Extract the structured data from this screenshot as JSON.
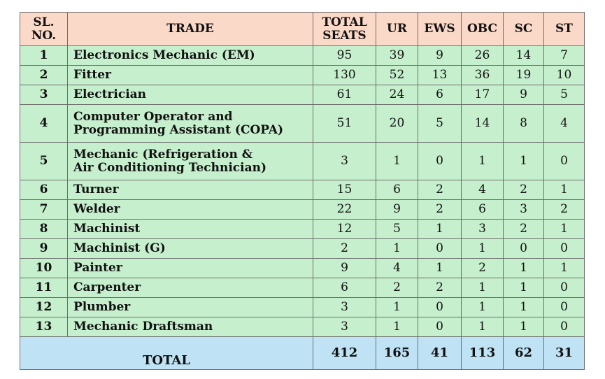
{
  "headers": [
    "SL. NO.",
    "TRADE",
    "TOTAL SEATS",
    "UR",
    "EWS",
    "OBC",
    "SC",
    "ST"
  ],
  "rows": [
    {
      "sl": "1",
      "trade": [
        "Electronics Mechanic (EM)"
      ],
      "total": "95",
      "ur": "39",
      "ews": "9",
      "obc": "26",
      "sc": "14",
      "st": "7"
    },
    {
      "sl": "2",
      "trade": [
        "Fitter"
      ],
      "total": "130",
      "ur": "52",
      "ews": "13",
      "obc": "36",
      "sc": "19",
      "st": "10"
    },
    {
      "sl": "3",
      "trade": [
        "Electrician"
      ],
      "total": "61",
      "ur": "24",
      "ews": "6",
      "obc": "17",
      "sc": "9",
      "st": "5"
    },
    {
      "sl": "4",
      "trade": [
        "Computer Operator and",
        "Programming Assistant (COPA)"
      ],
      "total": "51",
      "ur": "20",
      "ews": "5",
      "obc": "14",
      "sc": "8",
      "st": "4"
    },
    {
      "sl": "5",
      "trade": [
        "Mechanic (Refrigeration &",
        "Air Conditioning Technician)"
      ],
      "total": "3",
      "ur": "1",
      "ews": "0",
      "obc": "1",
      "sc": "1",
      "st": "0"
    },
    {
      "sl": "6",
      "trade": [
        "Turner"
      ],
      "total": "15",
      "ur": "6",
      "ews": "2",
      "obc": "4",
      "sc": "2",
      "st": "1"
    },
    {
      "sl": "7",
      "trade": [
        "Welder"
      ],
      "total": "22",
      "ur": "9",
      "ews": "2",
      "obc": "6",
      "sc": "3",
      "st": "2"
    },
    {
      "sl": "8",
      "trade": [
        "Machinist"
      ],
      "total": "12",
      "ur": "5",
      "ews": "1",
      "obc": "3",
      "sc": "2",
      "st": "1"
    },
    {
      "sl": "9",
      "trade": [
        "Machinist (G)"
      ],
      "total": "2",
      "ur": "1",
      "ews": "0",
      "obc": "1",
      "sc": "0",
      "st": "0"
    },
    {
      "sl": "10",
      "trade": [
        "Painter"
      ],
      "total": "9",
      "ur": "4",
      "ews": "1",
      "obc": "2",
      "sc": "1",
      "st": "1"
    },
    {
      "sl": "11",
      "trade": [
        "Carpenter"
      ],
      "total": "6",
      "ur": "2",
      "ews": "2",
      "obc": "1",
      "sc": "1",
      "st": "0"
    },
    {
      "sl": "12",
      "trade": [
        "Plumber"
      ],
      "total": "3",
      "ur": "1",
      "ews": "0",
      "obc": "1",
      "sc": "1",
      "st": "0"
    },
    {
      "sl": "13",
      "trade": [
        "Mechanic Draftsman"
      ],
      "total": "3",
      "ur": "1",
      "ews": "0",
      "obc": "1",
      "sc": "1",
      "st": "0"
    }
  ],
  "totals": {
    "label": "TOTAL",
    "total": "412",
    "ur": "165",
    "ews": "41",
    "obc": "113",
    "sc": "62",
    "st": "31"
  },
  "colors": {
    "header_bg": "#fbd9c8",
    "row_bg": "#c6efcd",
    "total_bg": "#bfe3f5",
    "border": "#6e6e6e"
  }
}
